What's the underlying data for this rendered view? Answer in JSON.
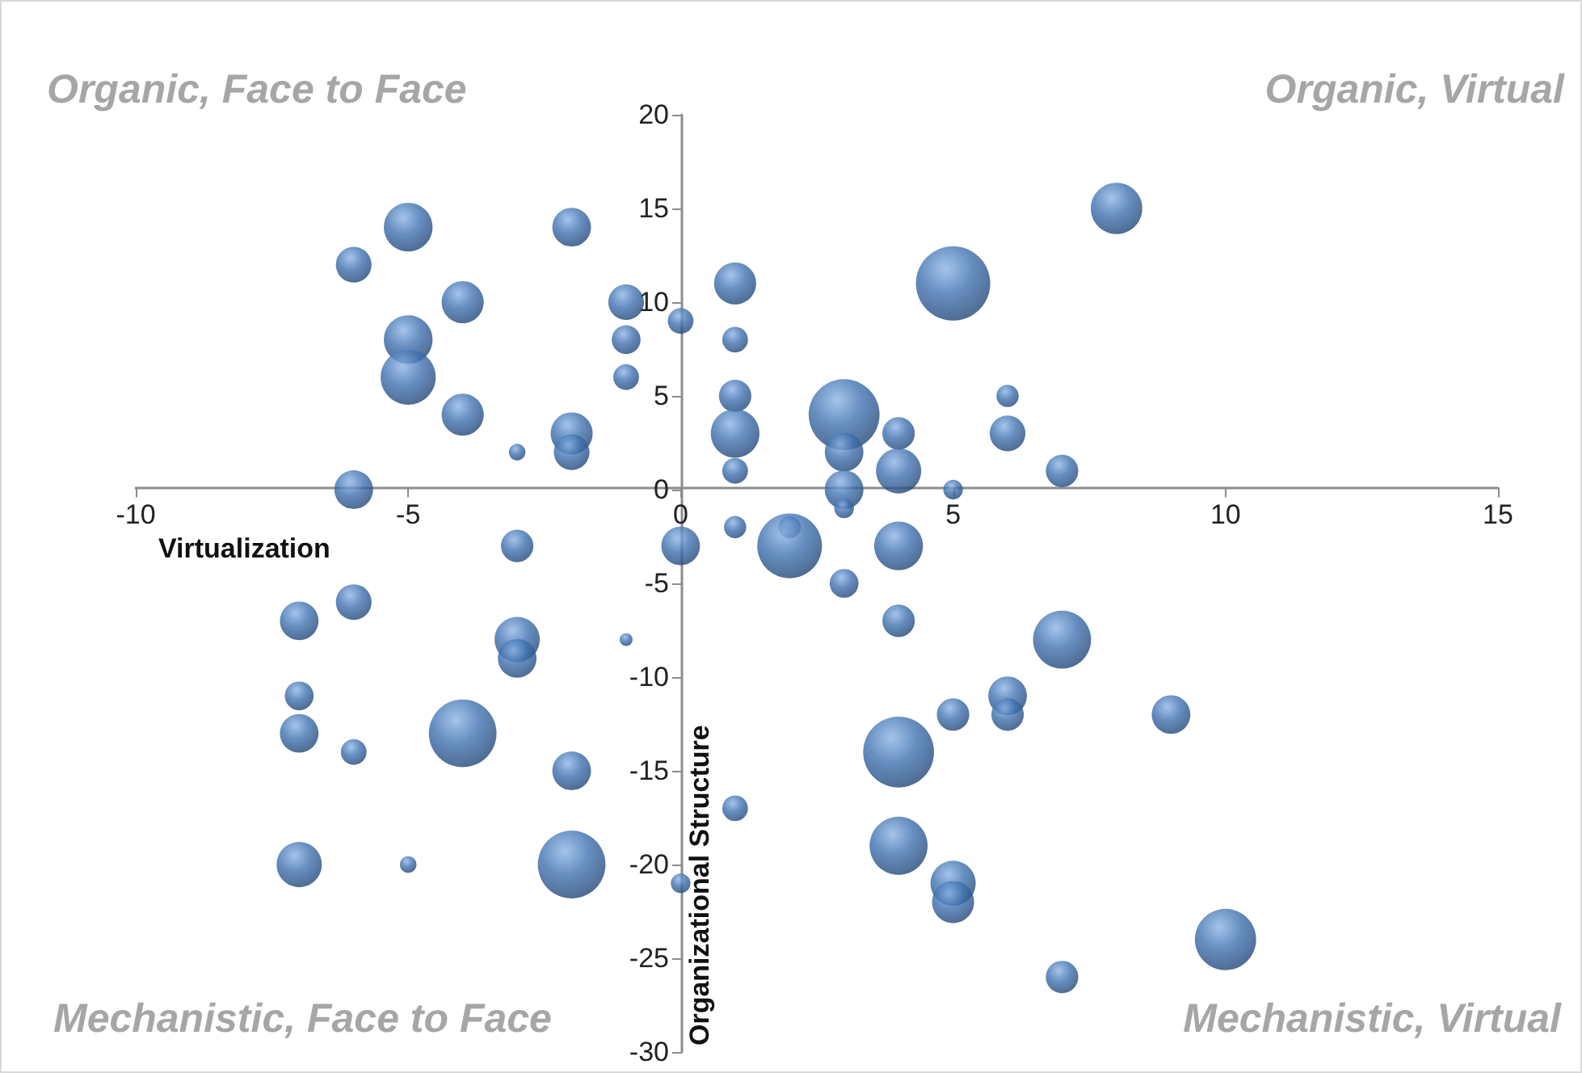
{
  "chart_data": {
    "type": "bubble",
    "xlabel": "Virtualization",
    "ylabel": "Organizational Structure",
    "annotations": [
      "Organic, Face to Face",
      "Organic, Virtual",
      "Mechanistic, Face to Face",
      "Mechanistic, Virtual"
    ],
    "xlim": [
      -10,
      15
    ],
    "xticks": [
      -10,
      -5,
      0,
      5,
      10,
      15
    ],
    "ylim": [
      -30,
      20
    ],
    "yticks": [
      -30,
      -25,
      -20,
      -15,
      -10,
      -5,
      0,
      5,
      10,
      15,
      20
    ],
    "grid": false,
    "marker": "circle",
    "series": [
      {
        "color": "#3f72b0",
        "x": [
          -5,
          -6,
          -4,
          -5,
          -5,
          -4,
          -3,
          -2,
          -2,
          -2,
          -1,
          -1,
          -1,
          0,
          -6,
          1,
          1,
          1,
          1,
          1,
          3,
          3,
          3,
          3,
          4,
          4,
          5,
          5,
          6,
          6,
          7,
          8,
          0,
          1,
          2,
          2,
          3,
          4,
          4,
          7,
          6,
          6,
          5,
          9,
          4,
          1,
          4,
          5,
          5,
          10,
          7,
          0,
          -2,
          -3,
          -6,
          -7,
          -3,
          -3,
          -1,
          -7,
          -7,
          -4,
          -6,
          -2,
          -7,
          -5
        ],
        "values": [
          14,
          12,
          10,
          8,
          6,
          4,
          2,
          3,
          2,
          14,
          10,
          8,
          6,
          9,
          0,
          11,
          8,
          5,
          3,
          1,
          4,
          2,
          0,
          -1,
          3,
          1,
          11,
          0,
          5,
          3,
          1,
          15,
          -3,
          -2,
          -2,
          -3,
          -5,
          -3,
          -7,
          -8,
          -11,
          -12,
          -12,
          -12,
          -14,
          -17,
          -19,
          -21,
          -22,
          -24,
          -26,
          -21,
          -20,
          -3,
          -6,
          -7,
          -8,
          -9,
          -8,
          -11,
          -13,
          -13,
          -14,
          -15,
          -20,
          -20
        ],
        "sizes": [
          0.43,
          0.23,
          0.32,
          0.43,
          0.55,
          0.32,
          0.05,
          0.32,
          0.23,
          0.27,
          0.23,
          0.15,
          0.12,
          0.12,
          0.27,
          0.32,
          0.12,
          0.19,
          0.43,
          0.12,
          0.91,
          0.27,
          0.27,
          0.07,
          0.19,
          0.37,
          1,
          0.07,
          0.09,
          0.23,
          0.19,
          0.48,
          0.27,
          0.09,
          0.09,
          0.76,
          0.15,
          0.43,
          0.19,
          0.61,
          0.27,
          0.19,
          0.19,
          0.27,
          0.91,
          0.12,
          0.61,
          0.37,
          0.32,
          0.68,
          0.19,
          0.07,
          0.83,
          0.19,
          0.23,
          0.27,
          0.37,
          0.27,
          0.03,
          0.15,
          0.27,
          0.83,
          0.12,
          0.27,
          0.37,
          0.05
        ]
      }
    ]
  }
}
